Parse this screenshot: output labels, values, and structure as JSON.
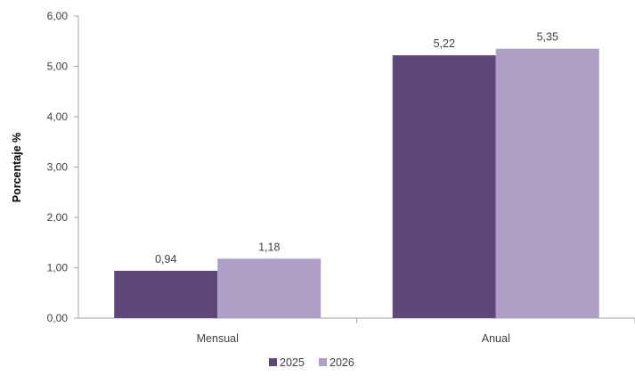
{
  "chart_data": {
    "type": "bar",
    "categories": [
      "Mensual",
      "Anual"
    ],
    "series": [
      {
        "name": "2025",
        "values": [
          0.94,
          5.22
        ],
        "labels": [
          "0,94",
          "5,22"
        ],
        "color": "#5f4779"
      },
      {
        "name": "2026",
        "values": [
          1.18,
          5.35
        ],
        "labels": [
          "1,18",
          "5,35"
        ],
        "color": "#b09fc7"
      }
    ],
    "ylabel": "Porcentaje %",
    "ylim": [
      0,
      6
    ],
    "yticks": [
      0,
      1,
      2,
      3,
      4,
      5,
      6
    ],
    "ytick_labels": [
      "0,00",
      "1,00",
      "2,00",
      "3,00",
      "4,00",
      "5,00",
      "6,00"
    ],
    "grid": false,
    "legend_position": "bottom"
  }
}
